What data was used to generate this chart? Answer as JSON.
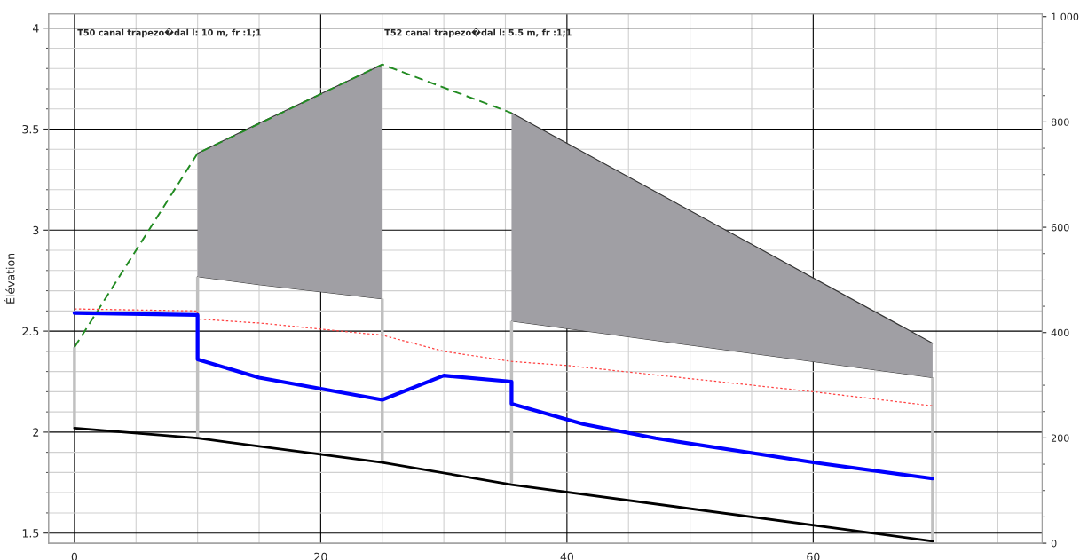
{
  "chart_data": {
    "type": "line",
    "ylabel": "Élévation",
    "xlim": [
      -2.1,
      78.6
    ],
    "xticks": [
      0,
      20,
      40,
      60
    ],
    "ylim": [
      1.45,
      4.07
    ],
    "yticks": [
      1.5,
      2,
      2.5,
      3,
      3.5,
      4
    ],
    "y2lim": [
      0,
      1005
    ],
    "y2ticks": [
      0,
      200,
      400,
      600,
      800,
      {
        "value": 1000,
        "label": "1 000"
      }
    ],
    "grid": true,
    "legend": false,
    "annotations": [
      "T50 canal trapezo�dal l: 10 m, fr :1;1",
      "T52 canal trapezo�dal l: 5.5 m, fr :1;1"
    ],
    "series": [
      {
        "color": "#333333",
        "x": [
          10,
          15,
          25
        ],
        "values": [
          2.77,
          2.73,
          2.66
        ]
      },
      {
        "type": "area",
        "color": "#a09fa4",
        "x": [
          10,
          15,
          25
        ],
        "values": [
          3.38,
          3.53,
          3.82
        ]
      },
      {
        "color": "#333333",
        "x": [
          35.5,
          69.7
        ],
        "values": [
          2.55,
          2.27
        ]
      },
      {
        "type": "area",
        "color": "#a09fa4",
        "x": [
          35.5,
          69.7
        ],
        "values": [
          3.58,
          2.44
        ]
      },
      {
        "type": "bar",
        "color": "#c0c0c0",
        "x": [
          0,
          10,
          25,
          35.5,
          69.7
        ],
        "base": [
          2.02,
          1.97,
          1.85,
          1.74,
          1.46
        ],
        "values": [
          0.4,
          0.8,
          0.81,
          0.81,
          0.81
        ]
      },
      {
        "color": "#228b22",
        "line_style": "dashed",
        "x": [
          0,
          10,
          25,
          35.5
        ],
        "values": [
          2.42,
          3.38,
          3.82,
          3.58
        ]
      },
      {
        "color": "#ff4040",
        "line_style": "dotted",
        "x": [
          0,
          10,
          10,
          15,
          25,
          30,
          35.5,
          40,
          60,
          69.7
        ],
        "values": [
          2.61,
          2.6,
          2.56,
          2.54,
          2.48,
          2.4,
          2.35,
          2.33,
          2.2,
          2.13
        ]
      },
      {
        "color": "#0000ff",
        "line_style": "solid",
        "x": [
          0,
          10,
          10,
          15,
          25,
          30,
          35.5,
          35.5,
          41.3,
          47.2,
          60,
          69.7
        ],
        "values": [
          2.59,
          2.58,
          2.36,
          2.27,
          2.16,
          2.28,
          2.25,
          2.14,
          2.04,
          1.97,
          1.85,
          1.77
        ]
      },
      {
        "color": "#000000",
        "line_style": "solid",
        "x": [
          0,
          10,
          25,
          35.5,
          69.7
        ],
        "values": [
          2.02,
          1.97,
          1.85,
          1.74,
          1.46
        ]
      }
    ]
  }
}
